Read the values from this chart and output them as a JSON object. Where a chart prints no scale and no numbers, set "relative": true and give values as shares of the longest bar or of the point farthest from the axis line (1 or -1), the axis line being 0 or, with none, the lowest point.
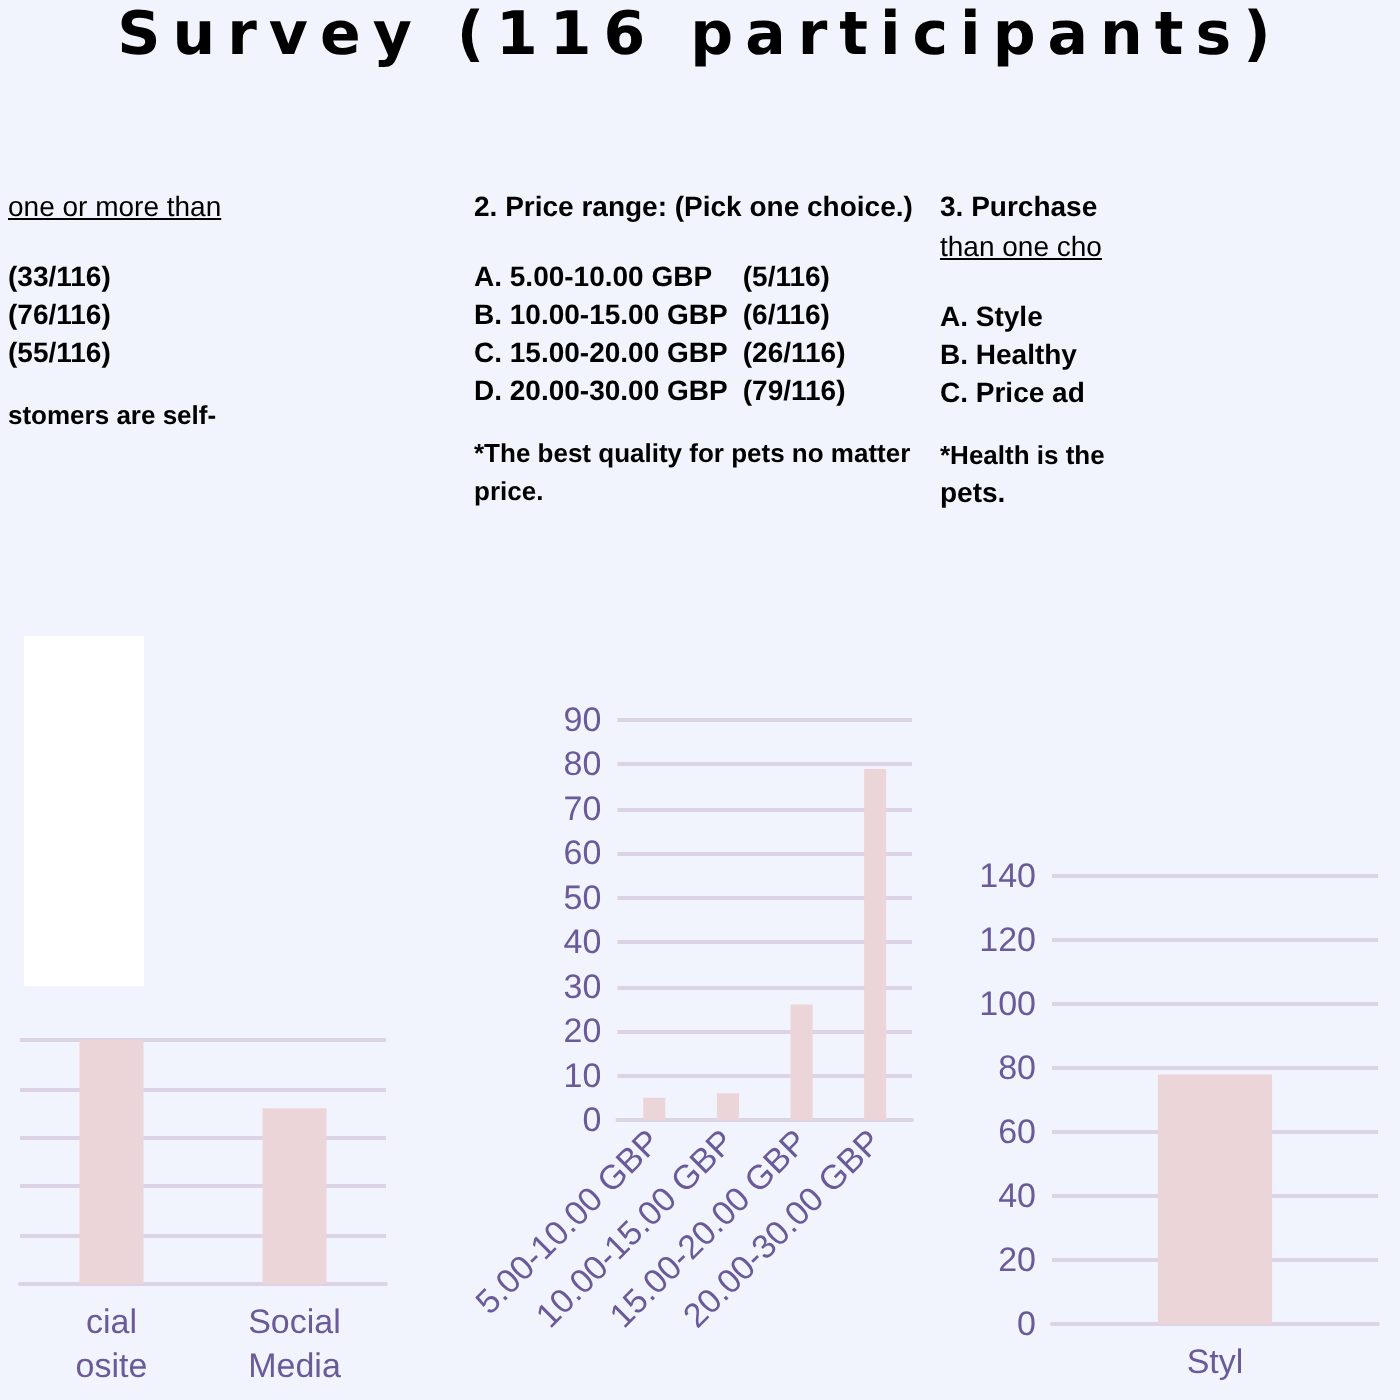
{
  "chart_data": [
    {
      "type": "bar",
      "title": "one or more than",
      "annotations": [
        "(33/116)",
        "(76/116)",
        "(55/116)",
        "stomers are self-"
      ],
      "categories": [
        "cial\nosite",
        "Social\nMedia"
      ],
      "values": [
        1,
        0.72
      ],
      "relative": true,
      "color": "#ecd5d9",
      "grid": "y"
    },
    {
      "type": "bar",
      "title": "Survey (116 participants)",
      "subtitle": "2. Price range: (Pick one choice.)",
      "annotations": [
        "A. 5.00-10.00 GBP    (5/116)",
        "B. 10.00-15.00 GBP  (6/116)",
        "C. 15.00-20.00 GBP  (26/116)",
        "D. 20.00-30.00 GBP  (79/116)",
        "*The best quality for pets no matter price."
      ],
      "categories": [
        "5.00-10.00 GBP",
        "10.00-15.00 GBP",
        "15.00-20.00 GBP",
        "20.00-30.00 GBP"
      ],
      "values": [
        5,
        6,
        26,
        79
      ],
      "color": "#ecd5d9",
      "ylim": [
        0,
        90
      ],
      "yticks": [
        0,
        10,
        20,
        30,
        40,
        50,
        60,
        70,
        80,
        90
      ],
      "grid": "y"
    },
    {
      "type": "bar",
      "title": "3. Purchase",
      "subtitle": "than one cho",
      "annotations": [
        "A. Style",
        "B. Healthy",
        "C. Price ad",
        "*Health is the",
        "pets."
      ],
      "categories": [
        "Styl"
      ],
      "values": [
        78
      ],
      "color": "#ecd5d9",
      "ylim": [
        0,
        140
      ],
      "yticks": [
        0,
        20,
        40,
        60,
        80,
        100,
        120,
        140
      ],
      "grid": "y"
    }
  ]
}
